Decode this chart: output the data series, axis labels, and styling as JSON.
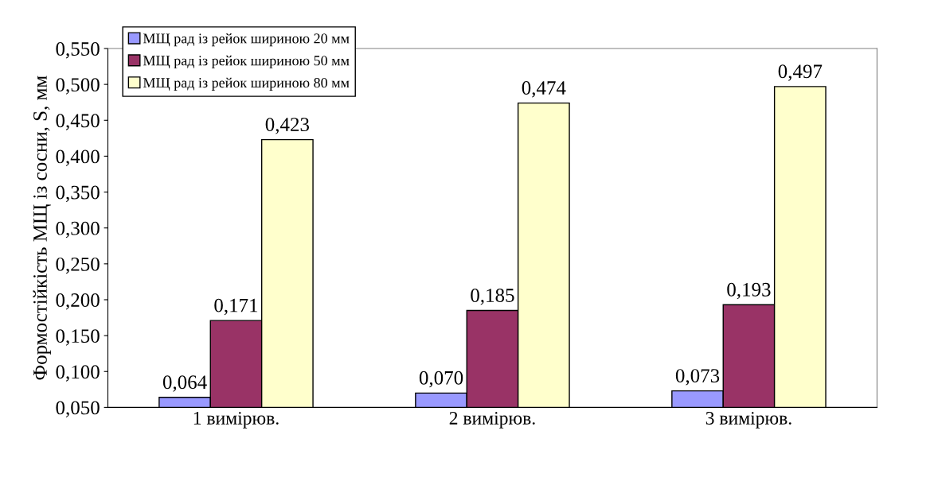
{
  "chart_data": {
    "type": "bar",
    "ylabel": "Формостійкість МЩ із сосни, S, мм",
    "categories": [
      "1 вимірюв.",
      "2 вимірюв.",
      "3 вимірюв."
    ],
    "series": [
      {
        "name": "МЩ рад із рейок шириною 20 мм",
        "color": "#9999ff",
        "values": [
          0.064,
          0.07,
          0.073
        ],
        "value_labels": [
          "0,064",
          "0,070",
          "0,073"
        ]
      },
      {
        "name": "МЩ рад із рейок шириною 50 мм",
        "color": "#993366",
        "values": [
          0.171,
          0.185,
          0.193
        ],
        "value_labels": [
          "0,171",
          "0,185",
          "0,193"
        ]
      },
      {
        "name": "МЩ рад із рейок шириною 80 мм",
        "color": "#ffffcc",
        "values": [
          0.423,
          0.474,
          0.497
        ],
        "value_labels": [
          "0,423",
          "0,474",
          "0,497"
        ]
      }
    ],
    "ylim": [
      0.05,
      0.55
    ],
    "yticks": [
      {
        "value": 0.05,
        "label": "0,050"
      },
      {
        "value": 0.1,
        "label": "0,100"
      },
      {
        "value": 0.15,
        "label": "0,150"
      },
      {
        "value": 0.2,
        "label": "0,200"
      },
      {
        "value": 0.25,
        "label": "0,250"
      },
      {
        "value": 0.3,
        "label": "0,300"
      },
      {
        "value": 0.35,
        "label": "0,350"
      },
      {
        "value": 0.4,
        "label": "0,400"
      },
      {
        "value": 0.45,
        "label": "0,450"
      },
      {
        "value": 0.5,
        "label": "0,500"
      },
      {
        "value": 0.55,
        "label": "0,550"
      }
    ],
    "grid": false,
    "legend": "top left"
  }
}
